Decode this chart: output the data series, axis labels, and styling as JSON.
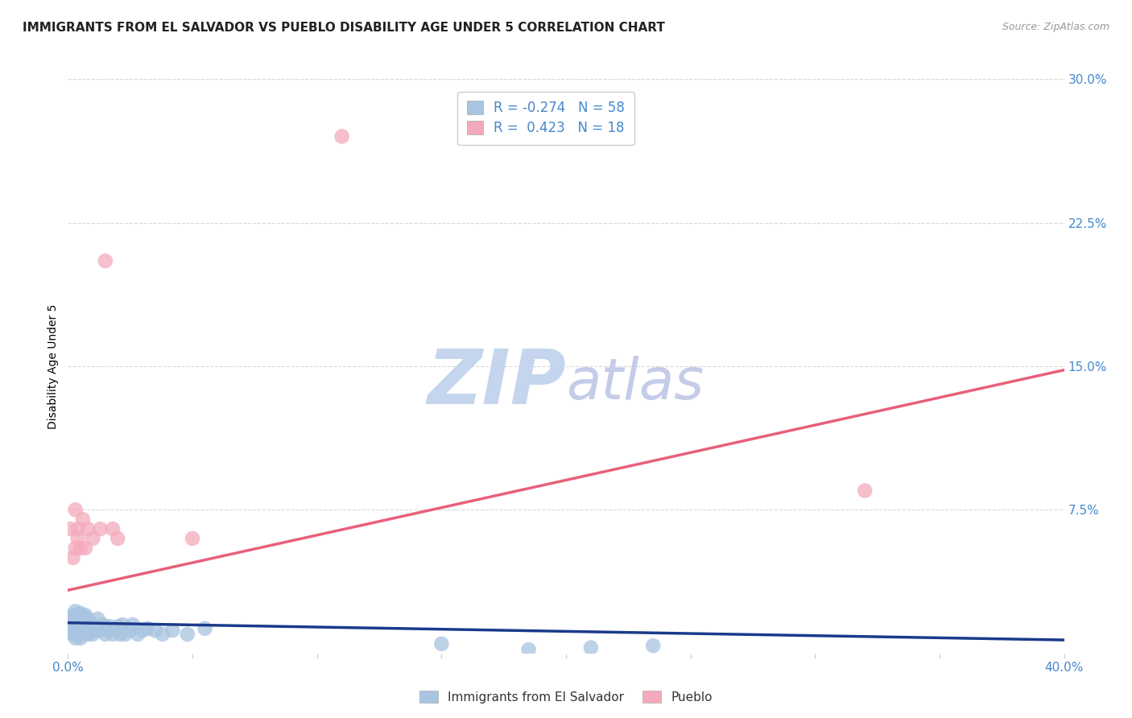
{
  "title": "IMMIGRANTS FROM EL SALVADOR VS PUEBLO DISABILITY AGE UNDER 5 CORRELATION CHART",
  "source": "Source: ZipAtlas.com",
  "ylabel": "Disability Age Under 5",
  "xlim": [
    0.0,
    0.4
  ],
  "ylim": [
    0.0,
    0.3
  ],
  "xticks": [
    0.0,
    0.05,
    0.1,
    0.15,
    0.2,
    0.25,
    0.3,
    0.35,
    0.4
  ],
  "xticklabels": [
    "0.0%",
    "",
    "",
    "",
    "",
    "",
    "",
    "",
    "40.0%"
  ],
  "yticks_right": [
    0.075,
    0.15,
    0.225,
    0.3
  ],
  "yticklabels_right": [
    "7.5%",
    "15.0%",
    "22.5%",
    "30.0%"
  ],
  "blue_color": "#a8c4e0",
  "blue_line_color": "#1a3a8a",
  "pink_color": "#f4aabc",
  "pink_line_color": "#e8607a",
  "legend_label_blue": "R = -0.274   N = 58",
  "legend_label_pink": "R =  0.423   N = 18",
  "bottom_legend_blue": "Immigrants from El Salvador",
  "bottom_legend_pink": "Pueblo",
  "watermark_zip": "ZIP",
  "watermark_atlas": "atlas",
  "watermark_color_zip": "#c5d5ee",
  "watermark_color_atlas": "#c5cce8",
  "watermark_fontsize": 68,
  "blue_scatter_x": [
    0.001,
    0.001,
    0.002,
    0.002,
    0.002,
    0.003,
    0.003,
    0.003,
    0.003,
    0.004,
    0.004,
    0.004,
    0.005,
    0.005,
    0.005,
    0.005,
    0.006,
    0.006,
    0.006,
    0.007,
    0.007,
    0.007,
    0.008,
    0.008,
    0.008,
    0.009,
    0.009,
    0.01,
    0.01,
    0.011,
    0.012,
    0.012,
    0.013,
    0.014,
    0.015,
    0.015,
    0.016,
    0.017,
    0.018,
    0.019,
    0.02,
    0.021,
    0.022,
    0.023,
    0.025,
    0.026,
    0.028,
    0.03,
    0.032,
    0.035,
    0.038,
    0.042,
    0.048,
    0.055,
    0.15,
    0.185,
    0.21,
    0.235
  ],
  "blue_scatter_y": [
    0.012,
    0.018,
    0.01,
    0.015,
    0.02,
    0.008,
    0.014,
    0.018,
    0.022,
    0.01,
    0.016,
    0.02,
    0.008,
    0.013,
    0.017,
    0.021,
    0.01,
    0.015,
    0.019,
    0.012,
    0.016,
    0.02,
    0.01,
    0.014,
    0.018,
    0.012,
    0.016,
    0.01,
    0.015,
    0.012,
    0.014,
    0.018,
    0.012,
    0.015,
    0.01,
    0.014,
    0.012,
    0.014,
    0.01,
    0.012,
    0.014,
    0.01,
    0.015,
    0.01,
    0.012,
    0.015,
    0.01,
    0.012,
    0.013,
    0.012,
    0.01,
    0.012,
    0.01,
    0.013,
    0.005,
    0.002,
    0.003,
    0.004
  ],
  "pink_scatter_x": [
    0.001,
    0.002,
    0.003,
    0.003,
    0.004,
    0.004,
    0.005,
    0.006,
    0.007,
    0.008,
    0.01,
    0.013,
    0.015,
    0.018,
    0.02,
    0.05,
    0.11,
    0.32
  ],
  "pink_scatter_y": [
    0.065,
    0.05,
    0.055,
    0.075,
    0.06,
    0.065,
    0.055,
    0.07,
    0.055,
    0.065,
    0.06,
    0.065,
    0.205,
    0.065,
    0.06,
    0.06,
    0.27,
    0.085
  ],
  "blue_trend_x": [
    0.0,
    0.4
  ],
  "blue_trend_y": [
    0.016,
    0.007
  ],
  "pink_trend_x": [
    0.0,
    0.4
  ],
  "pink_trend_y": [
    0.033,
    0.148
  ],
  "grid_color": "#d8d8d8",
  "bg_color": "#ffffff",
  "title_fontsize": 11,
  "axis_label_fontsize": 10,
  "tick_fontsize": 11,
  "tick_color": "#4488cc"
}
